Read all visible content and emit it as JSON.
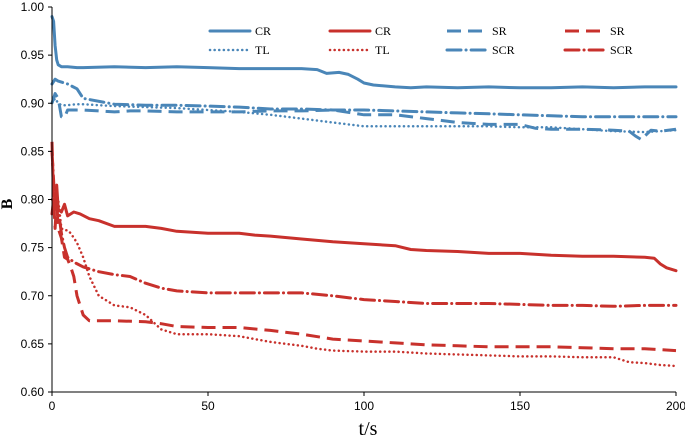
{
  "chart_data": {
    "type": "line",
    "title": "",
    "xlabel": "t/s",
    "ylabel": "B",
    "xlim": [
      0,
      200
    ],
    "ylim": [
      0.6,
      1.0
    ],
    "xticks": [
      "0",
      "50",
      "100",
      "150",
      "200"
    ],
    "yticks": [
      "0.60",
      "0.65",
      "0.70",
      "0.75",
      "0.80",
      "0.85",
      "0.90",
      "0.95",
      "1.00"
    ],
    "grid": false,
    "legend_position": "top-right",
    "colors": {
      "blue": "#4a86b8",
      "red": "#c8312c"
    },
    "series": [
      {
        "name": "CR",
        "color": "blue",
        "style": "solid",
        "x": [
          0,
          0.5,
          1,
          1.5,
          2,
          3,
          5,
          8,
          10,
          20,
          30,
          40,
          50,
          60,
          70,
          80,
          85,
          88,
          92,
          95,
          98,
          100,
          103,
          110,
          115,
          120,
          130,
          140,
          150,
          160,
          170,
          180,
          190,
          200
        ],
        "y": [
          0.99,
          0.985,
          0.96,
          0.945,
          0.94,
          0.938,
          0.938,
          0.937,
          0.937,
          0.938,
          0.937,
          0.938,
          0.937,
          0.936,
          0.936,
          0.936,
          0.935,
          0.931,
          0.932,
          0.93,
          0.925,
          0.921,
          0.919,
          0.917,
          0.916,
          0.917,
          0.916,
          0.917,
          0.916,
          0.916,
          0.917,
          0.916,
          0.917,
          0.917
        ]
      },
      {
        "name": "CR",
        "color": "red",
        "style": "solid",
        "x": [
          0,
          0.5,
          1,
          1.5,
          2,
          3,
          4,
          5,
          7,
          9,
          12,
          15,
          20,
          25,
          30,
          35,
          40,
          50,
          60,
          65,
          70,
          80,
          90,
          100,
          110,
          115,
          120,
          130,
          140,
          150,
          160,
          170,
          180,
          190,
          193,
          195,
          197,
          200
        ],
        "y": [
          0.785,
          0.8,
          0.795,
          0.815,
          0.79,
          0.787,
          0.795,
          0.783,
          0.787,
          0.785,
          0.78,
          0.778,
          0.772,
          0.772,
          0.772,
          0.77,
          0.767,
          0.765,
          0.765,
          0.763,
          0.762,
          0.759,
          0.756,
          0.754,
          0.752,
          0.748,
          0.747,
          0.746,
          0.744,
          0.744,
          0.742,
          0.741,
          0.741,
          0.74,
          0.739,
          0.733,
          0.729,
          0.726
        ]
      },
      {
        "name": "SR",
        "color": "blue",
        "style": "dash",
        "x": [
          0,
          1,
          2,
          3,
          4,
          5,
          8,
          10,
          15,
          20,
          25,
          30,
          40,
          50,
          60,
          70,
          80,
          90,
          100,
          110,
          120,
          130,
          140,
          150,
          155,
          160,
          170,
          180,
          185,
          187,
          189,
          190,
          192,
          195,
          200
        ],
        "y": [
          0.9,
          0.91,
          0.905,
          0.886,
          0.885,
          0.893,
          0.893,
          0.893,
          0.892,
          0.891,
          0.892,
          0.892,
          0.891,
          0.891,
          0.891,
          0.892,
          0.892,
          0.893,
          0.888,
          0.888,
          0.884,
          0.88,
          0.878,
          0.878,
          0.874,
          0.873,
          0.873,
          0.872,
          0.871,
          0.866,
          0.862,
          0.866,
          0.872,
          0.871,
          0.873
        ]
      },
      {
        "name": "SR",
        "color": "red",
        "style": "dash",
        "x": [
          0,
          0.5,
          1,
          1.5,
          2,
          3,
          4,
          5,
          6,
          7,
          8,
          9,
          10,
          12,
          15,
          20,
          30,
          35,
          40,
          50,
          60,
          70,
          80,
          90,
          100,
          110,
          120,
          130,
          140,
          150,
          160,
          170,
          180,
          185,
          190,
          195,
          200
        ],
        "y": [
          0.86,
          0.8,
          0.77,
          0.8,
          0.77,
          0.76,
          0.74,
          0.738,
          0.73,
          0.72,
          0.7,
          0.69,
          0.68,
          0.674,
          0.674,
          0.674,
          0.673,
          0.671,
          0.668,
          0.667,
          0.667,
          0.664,
          0.66,
          0.655,
          0.653,
          0.651,
          0.649,
          0.648,
          0.647,
          0.647,
          0.647,
          0.646,
          0.645,
          0.645,
          0.645,
          0.644,
          0.643
        ]
      },
      {
        "name": "TL",
        "color": "blue",
        "style": "dot",
        "x": [
          0,
          1,
          2,
          3,
          5,
          8,
          10,
          15,
          20,
          30,
          40,
          50,
          60,
          70,
          80,
          90,
          100,
          110,
          120,
          130,
          140,
          150,
          160,
          170,
          180,
          190,
          200
        ],
        "y": [
          0.9,
          0.905,
          0.9,
          0.898,
          0.898,
          0.899,
          0.899,
          0.898,
          0.897,
          0.896,
          0.895,
          0.893,
          0.891,
          0.888,
          0.884,
          0.88,
          0.876,
          0.876,
          0.876,
          0.876,
          0.876,
          0.875,
          0.875,
          0.873,
          0.871,
          0.87,
          0.872
        ]
      },
      {
        "name": "TL",
        "color": "red",
        "style": "dot",
        "x": [
          0,
          0.5,
          1,
          2,
          3,
          4,
          5,
          6,
          8,
          10,
          12,
          15,
          20,
          25,
          30,
          35,
          40,
          50,
          60,
          65,
          70,
          75,
          80,
          85,
          90,
          100,
          110,
          120,
          130,
          140,
          150,
          160,
          170,
          180,
          185,
          190,
          195,
          200
        ],
        "y": [
          0.8,
          0.81,
          0.79,
          0.8,
          0.77,
          0.768,
          0.768,
          0.765,
          0.755,
          0.74,
          0.72,
          0.7,
          0.69,
          0.688,
          0.68,
          0.665,
          0.66,
          0.66,
          0.658,
          0.655,
          0.652,
          0.65,
          0.648,
          0.645,
          0.643,
          0.642,
          0.642,
          0.64,
          0.639,
          0.638,
          0.637,
          0.637,
          0.636,
          0.636,
          0.631,
          0.63,
          0.628,
          0.627
        ]
      },
      {
        "name": "SCR",
        "color": "blue",
        "style": "dashdot",
        "x": [
          0,
          1,
          2,
          3,
          5,
          8,
          10,
          20,
          30,
          40,
          50,
          60,
          70,
          80,
          90,
          100,
          110,
          120,
          130,
          140,
          150,
          160,
          170,
          180,
          190,
          200
        ],
        "y": [
          0.92,
          0.925,
          0.923,
          0.922,
          0.92,
          0.915,
          0.905,
          0.899,
          0.898,
          0.898,
          0.897,
          0.896,
          0.894,
          0.894,
          0.893,
          0.893,
          0.892,
          0.891,
          0.89,
          0.889,
          0.888,
          0.887,
          0.886,
          0.886,
          0.886,
          0.886
        ]
      },
      {
        "name": "SCR",
        "color": "red",
        "style": "dashdot",
        "x": [
          0,
          0.5,
          1,
          2,
          3,
          4,
          5,
          7,
          10,
          15,
          20,
          25,
          30,
          35,
          40,
          50,
          60,
          70,
          80,
          90,
          100,
          110,
          120,
          130,
          140,
          150,
          160,
          170,
          180,
          190,
          200
        ],
        "y": [
          0.85,
          0.82,
          0.79,
          0.79,
          0.765,
          0.75,
          0.74,
          0.735,
          0.73,
          0.725,
          0.722,
          0.72,
          0.713,
          0.708,
          0.705,
          0.703,
          0.703,
          0.703,
          0.703,
          0.7,
          0.696,
          0.694,
          0.692,
          0.692,
          0.692,
          0.691,
          0.69,
          0.69,
          0.689,
          0.69,
          0.69
        ]
      }
    ]
  }
}
